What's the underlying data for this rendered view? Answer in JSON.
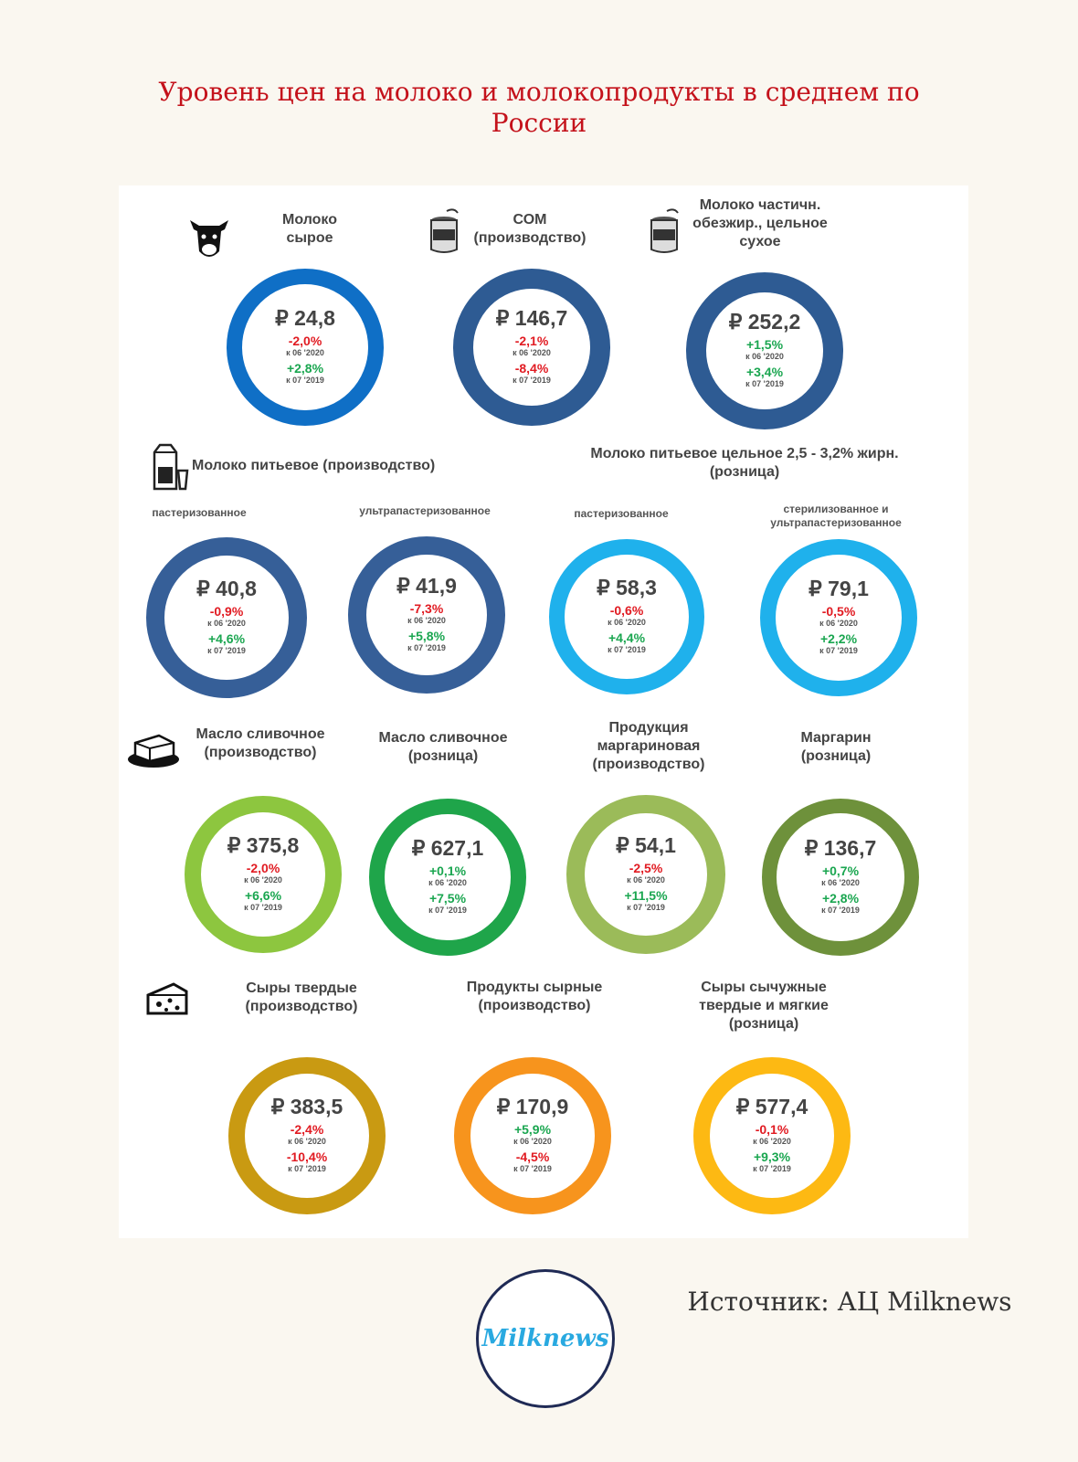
{
  "title": "Уровень цен на молоко и молокопродукты в среднем по России",
  "source": "Источник: АЦ Milknews",
  "logo_text": "Milknews",
  "section_labels": {
    "drinking_milk_production": "Молоко питьевое (производство)",
    "drinking_milk_retail": "Молоко питьевое цельное 2,5 - 3,2% жирн. (розница)"
  },
  "icons": [
    "cow-icon",
    "milk-powder-can-icon",
    "milk-powder-can-icon",
    "milk-carton-glass-icon",
    "butter-icon",
    "cheese-icon"
  ],
  "chart_data": {
    "type": "donut-kpi",
    "items": [
      {
        "label": "Молоко сырое",
        "price": "₽ 24,8",
        "change_month": "-2,0%",
        "month_ref": "к 06 '2020",
        "change_year": "+2,8%",
        "year_ref": "к 07 '2019",
        "color": "#0f6fc6"
      },
      {
        "label": "СОМ (производство)",
        "price": "₽ 146,7",
        "change_month": "-2,1%",
        "month_ref": "к 06 '2020",
        "change_year": "-8,4%",
        "year_ref": "к 07 '2019",
        "color": "#2e5b93"
      },
      {
        "label": "Молоко частичн. обезжир., цельное сухое",
        "price": "₽ 252,2",
        "change_month": "+1,5%",
        "month_ref": "к 06 '2020",
        "change_year": "+3,4%",
        "year_ref": "к 07 '2019",
        "color": "#2e5b93"
      },
      {
        "label": "пастеризованное",
        "price": "₽ 40,8",
        "change_month": "-0,9%",
        "month_ref": "к 06 '2020",
        "change_year": "+4,6%",
        "year_ref": "к 07 '2019",
        "color": "#365f98"
      },
      {
        "label": "ультрапастеризованное",
        "price": "₽ 41,9",
        "change_month": "-7,3%",
        "month_ref": "к 06 '2020",
        "change_year": "+5,8%",
        "year_ref": "к 07 '2019",
        "color": "#365f98"
      },
      {
        "label": "пастеризованное",
        "price": "₽ 58,3",
        "change_month": "-0,6%",
        "month_ref": "к 06 '2020",
        "change_year": "+4,4%",
        "year_ref": "к 07 '2019",
        "color": "#1fb1ec"
      },
      {
        "label": "стерилизованное и ультрапастеризованное",
        "price": "₽ 79,1",
        "change_month": "-0,5%",
        "month_ref": "к 06 '2020",
        "change_year": "+2,2%",
        "year_ref": "к 07 '2019",
        "color": "#1fb1ec"
      },
      {
        "label": "Масло сливочное (производство)",
        "price": "₽ 375,8",
        "change_month": "-2,0%",
        "month_ref": "к 06 '2020",
        "change_year": "+6,6%",
        "year_ref": "к 07 '2019",
        "color": "#8dc63f"
      },
      {
        "label": "Масло сливочное (розница)",
        "price": "₽ 627,1",
        "change_month": "+0,1%",
        "month_ref": "к 06 '2020",
        "change_year": "+7,5%",
        "year_ref": "к 07 '2019",
        "color": "#1fa54a"
      },
      {
        "label": "Продукция маргариновая (производство)",
        "price": "₽ 54,1",
        "change_month": "-2,5%",
        "month_ref": "к 06 '2020",
        "change_year": "+11,5%",
        "year_ref": "к 07 '2019",
        "color": "#9bbb59"
      },
      {
        "label": "Маргарин (розница)",
        "price": "₽ 136,7",
        "change_month": "+0,7%",
        "month_ref": "к 06 '2020",
        "change_year": "+2,8%",
        "year_ref": "к 07 '2019",
        "color": "#6e913b"
      },
      {
        "label": "Сыры твердые (производство)",
        "price": "₽ 383,5",
        "change_month": "-2,4%",
        "month_ref": "к 06 '2020",
        "change_year": "-10,4%",
        "year_ref": "к 07 '2019",
        "color": "#c99a12"
      },
      {
        "label": "Продукты сырные (производство)",
        "price": "₽ 170,9",
        "change_month": "+5,9%",
        "month_ref": "к 06 '2020",
        "change_year": "-4,5%",
        "year_ref": "к 07 '2019",
        "color": "#f7941d"
      },
      {
        "label": "Сыры сычужные твердые и мягкие (розница)",
        "price": "₽ 577,4",
        "change_month": "-0,1%",
        "month_ref": "к 06 '2020",
        "change_year": "+9,3%",
        "year_ref": "к 07 '2019",
        "color": "#fdb913"
      }
    ]
  }
}
